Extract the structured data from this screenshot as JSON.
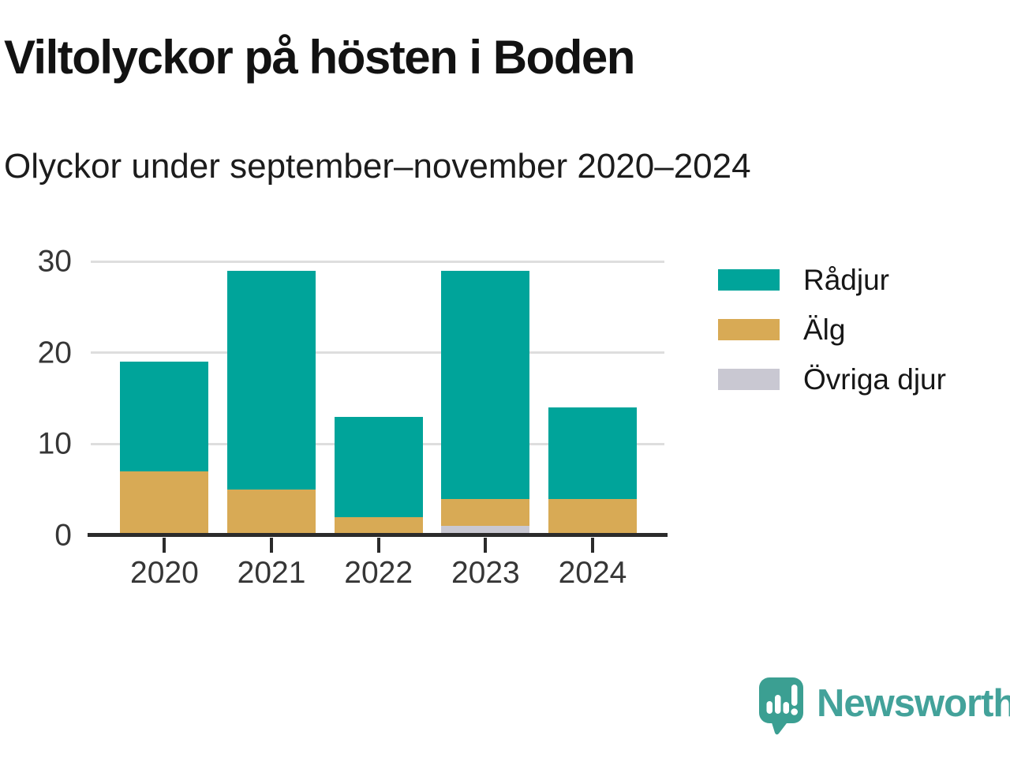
{
  "header": {
    "title": "Viltolyckor på hösten i Boden",
    "subtitle": "Olyckor under september–november 2020–2024"
  },
  "chart_data": {
    "type": "bar",
    "stacked": true,
    "title": "Viltolyckor på hösten i Boden",
    "subtitle": "Olyckor under september–november 2020–2024",
    "categories": [
      "2020",
      "2021",
      "2022",
      "2023",
      "2024"
    ],
    "series": [
      {
        "name": "Rådjur",
        "color": "#00a49a",
        "values": [
          12,
          24,
          11,
          25,
          10
        ]
      },
      {
        "name": "Älg",
        "color": "#d8aa55",
        "values": [
          7,
          5,
          2,
          3,
          4
        ]
      },
      {
        "name": "Övriga djur",
        "color": "#c9c8d2",
        "values": [
          0,
          0,
          0,
          1,
          0
        ]
      }
    ],
    "totals": [
      19,
      29,
      13,
      29,
      14
    ],
    "xlabel": "",
    "ylabel": "",
    "ylim": [
      0,
      30
    ],
    "yticks": [
      0,
      10,
      20,
      30
    ],
    "grid": "horizontal-light",
    "legend_position": "right"
  },
  "logo": {
    "text": "Newsworthy",
    "icon_color": "#3b9f92",
    "text_color": "#43a29a"
  }
}
